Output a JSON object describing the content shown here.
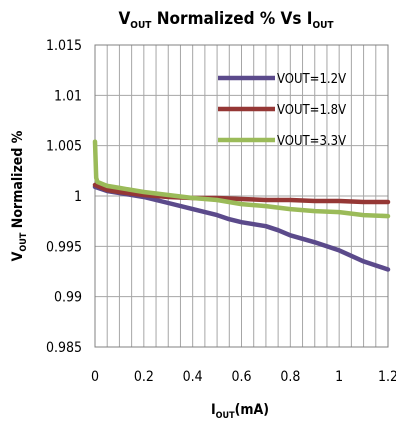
{
  "chart_data": {
    "type": "line",
    "title": {
      "main": "V",
      "main_sub": "OUT",
      "middle": " Normalized %  Vs  I",
      "end_sub": "OUT"
    },
    "xlabel": {
      "main": "I",
      "sub": "OUT",
      "rest": "(mA)"
    },
    "ylabel": {
      "main": "V",
      "sub": "OUT",
      "rest": " Normalized %"
    },
    "xlim": [
      0,
      1.2
    ],
    "ylim": [
      0.985,
      1.015
    ],
    "xticks": [
      "0",
      "0.2",
      "0.4",
      "0.6",
      "0.8",
      "1",
      "1.2"
    ],
    "yticks": [
      "0.985",
      "0.99",
      "0.995",
      "1",
      "1.005",
      "1.01",
      "1.015"
    ],
    "grid": true,
    "legend_position": "top-right",
    "series": [
      {
        "name": "VOUT=1.2V",
        "color": "#5b4a8b",
        "x": [
          0,
          0.05,
          0.1,
          0.2,
          0.3,
          0.4,
          0.5,
          0.55,
          0.6,
          0.65,
          0.7,
          0.75,
          0.8,
          0.9,
          1.0,
          1.1,
          1.2
        ],
        "y": [
          1.0009,
          1.0005,
          1.0003,
          0.9999,
          0.9993,
          0.9987,
          0.9981,
          0.9977,
          0.9974,
          0.9972,
          0.997,
          0.9966,
          0.9961,
          0.9954,
          0.9946,
          0.9935,
          0.9927
        ]
      },
      {
        "name": "VOUT=1.8V",
        "color": "#953735",
        "x": [
          0,
          0.05,
          0.1,
          0.2,
          0.3,
          0.4,
          0.5,
          0.6,
          0.7,
          0.8,
          0.9,
          1.0,
          1.1,
          1.2
        ],
        "y": [
          1.0011,
          1.0006,
          1.0004,
          1.0001,
          0.9999,
          0.9998,
          0.9998,
          0.9997,
          0.9996,
          0.9996,
          0.9995,
          0.9995,
          0.9994,
          0.9994
        ]
      },
      {
        "name": "VOUT=3.3V",
        "color": "#9bbb59",
        "x": [
          0,
          0.005,
          0.01,
          0.05,
          0.1,
          0.2,
          0.3,
          0.4,
          0.5,
          0.6,
          0.7,
          0.8,
          0.9,
          1.0,
          1.1,
          1.2
        ],
        "y": [
          1.0054,
          1.0018,
          1.0014,
          1.001,
          1.0008,
          1.0004,
          1.0001,
          0.9998,
          0.9996,
          0.9992,
          0.999,
          0.9987,
          0.9985,
          0.9984,
          0.9981,
          0.998
        ]
      }
    ]
  }
}
